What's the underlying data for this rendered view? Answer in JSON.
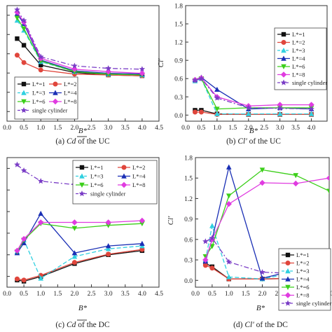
{
  "chart_data": [
    {
      "type": "line",
      "caption": "(a) Cd of the UC",
      "caption_parts": [
        "(a)",
        "Cd",
        "of the UC"
      ],
      "xlabel": "B*",
      "ylabel": "",
      "xlim": [
        0,
        4.5
      ],
      "ylim": [
        0.4,
        1.8
      ],
      "x_ticks": [
        "0.0",
        "0.5",
        "1.0",
        "1.5",
        "2.0",
        "2.5",
        "3.0",
        "3.5",
        "4.0",
        "4.5"
      ],
      "y_ticks": [],
      "x": [
        0.3,
        0.5,
        1.0,
        2.0,
        3.0,
        4.0
      ],
      "legend_position": "bottom-left",
      "series": [
        {
          "name": "L*=1",
          "values": [
            1.4,
            1.32,
            1.08,
            0.99,
            0.96,
            0.95
          ]
        },
        {
          "name": "L*=2",
          "values": [
            1.2,
            1.11,
            1.02,
            0.97,
            0.96,
            0.95
          ]
        },
        {
          "name": "L*=3",
          "values": [
            1.62,
            1.5,
            1.12,
            1.0,
            0.97,
            0.96
          ]
        },
        {
          "name": "L*=4",
          "values": [
            1.7,
            1.58,
            1.14,
            1.01,
            0.98,
            0.97
          ]
        },
        {
          "name": "L*=6",
          "values": [
            1.65,
            1.52,
            1.13,
            1.0,
            0.97,
            0.96
          ]
        },
        {
          "name": "L*=8",
          "values": [
            1.72,
            1.6,
            1.16,
            1.03,
            1.0,
            0.98
          ]
        },
        {
          "name": "single cylinder",
          "values": [
            1.75,
            1.62,
            1.18,
            1.07,
            1.04,
            1.03
          ]
        }
      ]
    },
    {
      "type": "line",
      "caption": "(b) Cl' of the UC",
      "caption_parts": [
        "(b)",
        "Cl'",
        "of the UC"
      ],
      "xlabel": "B*",
      "ylabel": "Cl'",
      "xlim": [
        0,
        4.5
      ],
      "ylim": [
        -0.1,
        1.8
      ],
      "x_ticks": [
        "0.0",
        "0.5",
        "1.0",
        "1.5",
        "2.0",
        "2.5",
        "3.0",
        "3.5",
        "4.0"
      ],
      "y_ticks": [
        "0.0",
        "0.3",
        "0.6",
        "0.9",
        "1.2",
        "1.5",
        "1.8"
      ],
      "x": [
        0.3,
        0.5,
        1.0,
        2.0,
        3.0,
        4.0
      ],
      "legend_position": "top-right",
      "series": [
        {
          "name": "L*=1",
          "values": [
            0.08,
            0.08,
            0.02,
            0.01,
            0.01,
            0.01
          ]
        },
        {
          "name": "L*=2",
          "values": [
            0.05,
            0.05,
            0.01,
            0.01,
            0.01,
            0.01
          ]
        },
        {
          "name": "L*=3",
          "values": [
            0.56,
            0.6,
            0.02,
            0.02,
            0.02,
            0.02
          ]
        },
        {
          "name": "L*=4",
          "values": [
            0.58,
            0.62,
            0.42,
            0.1,
            0.12,
            0.1
          ]
        },
        {
          "name": "L*=6",
          "values": [
            0.57,
            0.6,
            0.1,
            0.12,
            0.12,
            0.12
          ]
        },
        {
          "name": "L*=8",
          "values": [
            0.58,
            0.61,
            0.3,
            0.15,
            0.17,
            0.17
          ]
        },
        {
          "name": "single cylinder",
          "values": [
            0.57,
            0.6,
            0.28,
            0.12,
            0.11,
            0.1
          ]
        }
      ]
    },
    {
      "type": "line",
      "caption": "(c) Cd of the DC",
      "caption_parts": [
        "(c)",
        "Cd",
        "of the DC"
      ],
      "xlabel": "B*",
      "ylabel": "",
      "xlim": [
        0,
        4.5
      ],
      "ylim": [
        -0.5,
        1.7
      ],
      "x_ticks": [
        "0.0",
        "0.5",
        "1.0",
        "1.5",
        "2.0",
        "2.5",
        "3.0",
        "3.5",
        "4.0",
        "4.5"
      ],
      "y_ticks": [],
      "x": [
        0.3,
        0.5,
        1.0,
        2.0,
        3.0,
        4.0
      ],
      "legend_position": "top-right",
      "series": [
        {
          "name": "L*=1",
          "values": [
            -0.38,
            -0.4,
            -0.32,
            -0.1,
            0.05,
            0.12
          ]
        },
        {
          "name": "L*=2",
          "values": [
            -0.36,
            -0.38,
            -0.3,
            -0.08,
            0.06,
            0.14
          ]
        },
        {
          "name": "L*=3",
          "values": [
            0.1,
            0.3,
            -0.35,
            0.02,
            0.15,
            0.2
          ]
        },
        {
          "name": "L*=4",
          "values": [
            0.08,
            0.25,
            0.75,
            0.08,
            0.2,
            0.24
          ]
        },
        {
          "name": "L*=6",
          "values": [
            0.1,
            0.3,
            0.58,
            0.5,
            0.55,
            0.58
          ]
        },
        {
          "name": "L*=8",
          "values": [
            0.12,
            0.32,
            0.6,
            0.6,
            0.6,
            0.63
          ]
        },
        {
          "name": "single cylinder",
          "values": [
            1.58,
            1.48,
            1.3,
            1.24,
            1.18,
            1.17
          ]
        }
      ]
    },
    {
      "type": "line",
      "caption": "(d) Cl' of the DC",
      "caption_parts": [
        "(d)",
        "Cl'",
        "of the DC"
      ],
      "xlabel": "B*",
      "ylabel": "Cl'",
      "xlim": [
        0,
        4.0
      ],
      "ylim": [
        -0.1,
        1.8
      ],
      "x_ticks": [
        "0.0",
        "0.5",
        "1.0",
        "1.5",
        "2.0",
        "2.5",
        "3.0",
        "3.5",
        "4.0"
      ],
      "y_ticks": [
        "0.0",
        "0.3",
        "0.6",
        "0.9",
        "1.2",
        "1.5",
        "1.8"
      ],
      "x": [
        0.3,
        0.5,
        1.0,
        2.0,
        3.0,
        4.0
      ],
      "legend_position": "bottom-right",
      "series": [
        {
          "name": "L*=1",
          "values": [
            0.25,
            0.2,
            0.02,
            0.02,
            0.03,
            0.05
          ]
        },
        {
          "name": "L*=2",
          "values": [
            0.22,
            0.18,
            0.02,
            0.02,
            0.03,
            0.04
          ]
        },
        {
          "name": "L*=3",
          "values": [
            0.3,
            0.8,
            0.05,
            0.02,
            0.12,
            0.1
          ]
        },
        {
          "name": "L*=4",
          "values": [
            0.28,
            0.6,
            1.66,
            0.03,
            0.15,
            0.1
          ]
        },
        {
          "name": "L*=6",
          "values": [
            0.35,
            0.5,
            1.24,
            1.62,
            1.54,
            1.31
          ]
        },
        {
          "name": "L*=8",
          "values": [
            0.3,
            0.6,
            1.12,
            1.43,
            1.42,
            1.5
          ]
        },
        {
          "name": "single cylinder",
          "values": [
            0.57,
            0.62,
            0.27,
            0.12,
            0.1,
            0.1
          ]
        }
      ]
    }
  ],
  "style": {
    "colors": [
      "#111111",
      "#e0463c",
      "#2fd0e0",
      "#1a2fb5",
      "#3ccf1a",
      "#e03be0",
      "#7a3dc6"
    ],
    "markers": [
      "square",
      "circle",
      "triangle-up",
      "triangle-up",
      "triangle-down",
      "diamond",
      "star"
    ],
    "dashes": [
      "",
      "",
      "6,3",
      "",
      "",
      "",
      "7,3,2,3"
    ]
  }
}
